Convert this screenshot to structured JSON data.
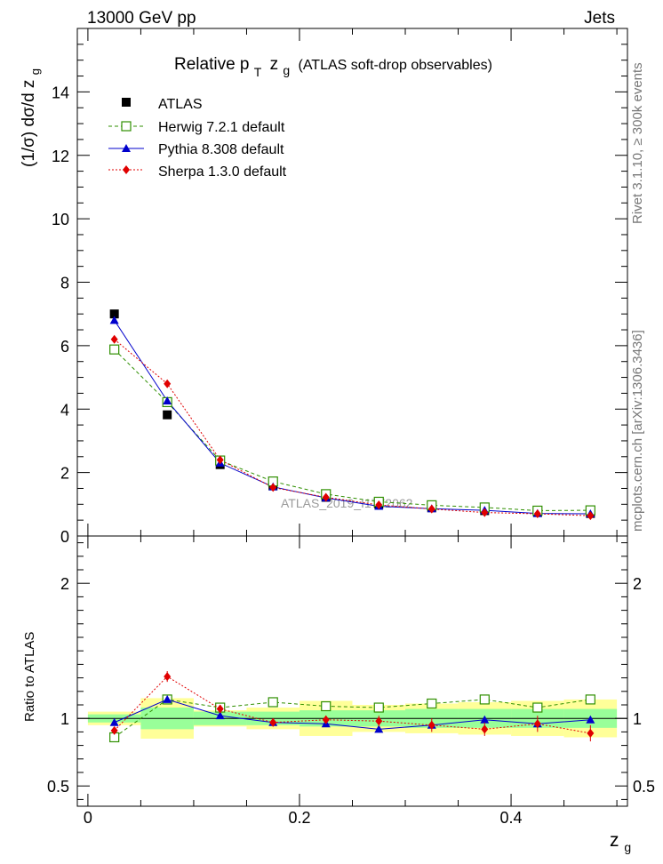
{
  "header": {
    "left_label": "13000 GeV pp",
    "right_label": "Jets"
  },
  "side_labels": {
    "rivet": "Rivet 3.1.10, ≥ 300k events",
    "mcplots": "mcplots.cern.ch [arXiv:1306.3436]"
  },
  "chart_data": {
    "type": "line",
    "title": "Relative p_T z_g (ATLAS soft-drop observables)",
    "title_main": "Relative p",
    "title_sub": "T",
    "title_var": "z",
    "title_var_sub": "g",
    "title_tail": "(ATLAS soft-drop observables)",
    "watermark": "ATLAS_2019_I1772062",
    "xlabel": "z_g",
    "xlabel_main": "z",
    "xlabel_sub": "g",
    "ylabel": "(1/σ) dσ/d z_g",
    "ylabel_main": "(1/σ) dσ/d z",
    "ylabel_sub": "g",
    "ratio_ylabel": "Ratio to ATLAS",
    "xlim": [
      -0.01,
      0.51
    ],
    "ylim": [
      0,
      16
    ],
    "ratio_ylim": [
      0.35,
      2.35
    ],
    "x_ticks": [
      0,
      0.2,
      0.4
    ],
    "x_tick_labels": [
      "0",
      "0.2",
      "0.4"
    ],
    "y_ticks": [
      0,
      2,
      4,
      6,
      8,
      10,
      12,
      14
    ],
    "y_tick_labels": [
      "0",
      "2",
      "4",
      "6",
      "8",
      "10",
      "12",
      "14"
    ],
    "ratio_ticks": [
      0.5,
      1,
      2
    ],
    "ratio_tick_labels": [
      "0.5",
      "1",
      "2"
    ],
    "x": [
      0.025,
      0.075,
      0.125,
      0.175,
      0.225,
      0.275,
      0.325,
      0.375,
      0.425,
      0.475
    ],
    "bin_edges": [
      0,
      0.05,
      0.1,
      0.15,
      0.2,
      0.25,
      0.3,
      0.35,
      0.4,
      0.45,
      0.5
    ],
    "data": {
      "name": "ATLAS",
      "values": [
        7.0,
        3.82,
        2.25,
        1.58,
        1.22,
        1.0,
        0.89,
        0.8,
        0.74,
        0.71
      ]
    },
    "series": [
      {
        "name": "Herwig 7.2.1 default",
        "color": "#2f8f00",
        "marker": "open-square",
        "dash": "4,3",
        "values": [
          5.88,
          4.22,
          2.38,
          1.72,
          1.32,
          1.08,
          0.97,
          0.9,
          0.8,
          0.81
        ],
        "ratio": [
          0.86,
          1.14,
          1.08,
          1.12,
          1.09,
          1.08,
          1.11,
          1.14,
          1.08,
          1.14
        ]
      },
      {
        "name": "Pythia 8.308 default",
        "color": "#0000cc",
        "marker": "triangle",
        "dash": "",
        "values": [
          6.8,
          4.26,
          2.3,
          1.55,
          1.2,
          0.94,
          0.86,
          0.81,
          0.71,
          0.7
        ],
        "ratio": [
          0.97,
          1.14,
          1.02,
          0.97,
          0.96,
          0.92,
          0.95,
          0.99,
          0.96,
          0.99
        ]
      },
      {
        "name": "Sherpa 1.3.0 default",
        "color": "#e00000",
        "marker": "diamond",
        "dash": "2,2",
        "values": [
          6.2,
          4.8,
          2.4,
          1.53,
          1.22,
          0.98,
          0.85,
          0.74,
          0.7,
          0.64
        ],
        "ratio": [
          0.91,
          1.31,
          1.07,
          0.97,
          0.99,
          0.98,
          0.95,
          0.92,
          0.96,
          0.89
        ],
        "ratio_err": [
          0.02,
          0.04,
          0.03,
          0.03,
          0.03,
          0.04,
          0.05,
          0.05,
          0.06,
          0.06
        ]
      }
    ],
    "band_inner": [
      0.03,
      0.08,
      0.05,
      0.05,
      0.06,
      0.06,
      0.07,
      0.07,
      0.07,
      0.07
    ],
    "band_outer": [
      0.05,
      0.15,
      0.06,
      0.08,
      0.13,
      0.1,
      0.11,
      0.12,
      0.13,
      0.14
    ]
  }
}
